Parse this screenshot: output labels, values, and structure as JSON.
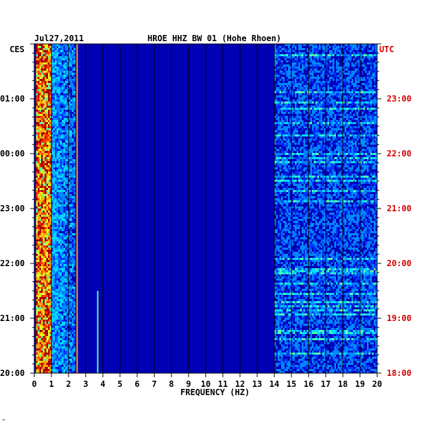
{
  "header": {
    "date": "Jul27,2011",
    "title": "HROE HHZ BW 01 (Hohe Rhoen)"
  },
  "chart_data": {
    "type": "heatmap",
    "title": "HROE HHZ BW 01 (Hohe Rhoen)",
    "date": "Jul27,2011",
    "xlabel": "FREQUENCY (HZ)",
    "x_ticks": [
      "0",
      "1",
      "2",
      "3",
      "4",
      "5",
      "6",
      "7",
      "8",
      "9",
      "10",
      "11",
      "12",
      "13",
      "14",
      "15",
      "16",
      "17",
      "18",
      "19",
      "20"
    ],
    "xlim": [
      0,
      20
    ],
    "left_axis": {
      "zone": "CES",
      "ticks": [
        "01:00",
        "00:00",
        "23:00",
        "22:00",
        "21:00",
        "20:00"
      ]
    },
    "right_axis": {
      "zone": "UTC",
      "ticks": [
        "23:00",
        "22:00",
        "21:00",
        "20:00",
        "19:00",
        "18:00"
      ],
      "color": "#d40000"
    },
    "time_range_utc": [
      "18:00",
      "24:00"
    ],
    "grid": true,
    "colormap": [
      "#000077",
      "#0000bb",
      "#0033ff",
      "#0088ff",
      "#00ddff",
      "#55ffaa",
      "#ddff22",
      "#ffaa00",
      "#ff3300",
      "#aa0000"
    ],
    "background_color": "#0000b4",
    "features": [
      {
        "label": "microseism band",
        "freq_hz": [
          0.1,
          1.0
        ],
        "level": 0.82
      },
      {
        "label": "line",
        "freq_hz": 2.5,
        "level": 0.7
      },
      {
        "label": "line",
        "freq_hz": 3.7,
        "level": 0.55
      },
      {
        "label": "high-frequency band",
        "freq_hz": [
          14,
          20
        ],
        "level": 0.45
      }
    ]
  },
  "footnote": "\""
}
